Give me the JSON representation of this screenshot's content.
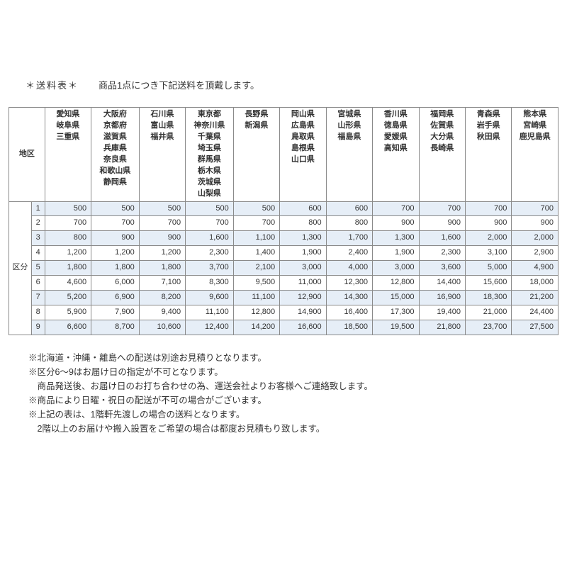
{
  "header": {
    "title": "＊送料表＊",
    "subtitle": "商品1点につき下記送料を頂戴します。"
  },
  "labels": {
    "chiku": "地区",
    "kubun": "区分"
  },
  "colors": {
    "shaded_row_bg": "#e6eef7",
    "border": "#8a8a8a",
    "text": "#333333",
    "background": "#ffffff"
  },
  "table": {
    "regions": [
      {
        "prefs": [
          "愛知県",
          "岐阜県",
          "三重県"
        ]
      },
      {
        "prefs": [
          "大阪府",
          "京都府",
          "滋賀県",
          "兵庫県",
          "奈良県",
          "和歌山県",
          "静岡県"
        ]
      },
      {
        "prefs": [
          "石川県",
          "富山県",
          "福井県"
        ]
      },
      {
        "prefs": [
          "東京都",
          "神奈川県",
          "千葉県",
          "埼玉県",
          "群馬県",
          "栃木県",
          "茨城県",
          "山梨県"
        ]
      },
      {
        "prefs": [
          "長野県",
          "新潟県"
        ]
      },
      {
        "prefs": [
          "岡山県",
          "広島県",
          "鳥取県",
          "島根県",
          "山口県"
        ]
      },
      {
        "prefs": [
          "宮城県",
          "山形県",
          "福島県"
        ]
      },
      {
        "prefs": [
          "香川県",
          "徳島県",
          "愛媛県",
          "高知県"
        ]
      },
      {
        "prefs": [
          "福岡県",
          "佐賀県",
          "大分県",
          "長崎県"
        ]
      },
      {
        "prefs": [
          "青森県",
          "岩手県",
          "秋田県"
        ]
      },
      {
        "prefs": [
          "熊本県",
          "宮崎県",
          "鹿児島県"
        ]
      }
    ],
    "rows": [
      {
        "idx": "1",
        "shaded": true,
        "values": [
          500,
          500,
          500,
          500,
          500,
          600,
          600,
          700,
          700,
          700,
          700
        ]
      },
      {
        "idx": "2",
        "shaded": false,
        "values": [
          700,
          700,
          700,
          700,
          700,
          800,
          800,
          900,
          900,
          900,
          900
        ]
      },
      {
        "idx": "3",
        "shaded": true,
        "values": [
          800,
          900,
          900,
          1600,
          1100,
          1300,
          1700,
          1300,
          1600,
          2000,
          2000
        ]
      },
      {
        "idx": "4",
        "shaded": false,
        "values": [
          1200,
          1200,
          1200,
          2300,
          1400,
          1900,
          2400,
          1900,
          2300,
          3100,
          2900
        ]
      },
      {
        "idx": "5",
        "shaded": true,
        "values": [
          1800,
          1800,
          1800,
          3700,
          2100,
          3000,
          4000,
          3000,
          3600,
          5000,
          4900
        ]
      },
      {
        "idx": "6",
        "shaded": false,
        "values": [
          4600,
          6000,
          7100,
          8300,
          9500,
          11000,
          12300,
          12800,
          14400,
          15600,
          18000
        ]
      },
      {
        "idx": "7",
        "shaded": true,
        "values": [
          5200,
          6900,
          8200,
          9600,
          11100,
          12900,
          14300,
          15000,
          16900,
          18300,
          21200
        ]
      },
      {
        "idx": "8",
        "shaded": false,
        "values": [
          5900,
          7900,
          9400,
          11100,
          12800,
          14900,
          16400,
          17300,
          19400,
          21000,
          24400
        ]
      },
      {
        "idx": "9",
        "shaded": true,
        "values": [
          6600,
          8700,
          10600,
          12400,
          14200,
          16600,
          18500,
          19500,
          21800,
          23700,
          27500
        ]
      }
    ]
  },
  "notes": [
    "※北海道・沖縄・離島への配送は別途お見積りとなります。",
    "※区分6～9はお届け日の指定が不可となります。",
    "　商品発送後、お届け日のお打ち合わせの為、運送会社よりお客様へご連絡致します。",
    "※商品により日曜・祝日の配送が不可の場合がございます。",
    "※上記の表は、1階軒先渡しの場合の送料となります。",
    "　2階以上のお届けや搬入設置をご希望の場合は都度お見積もり致します。"
  ]
}
